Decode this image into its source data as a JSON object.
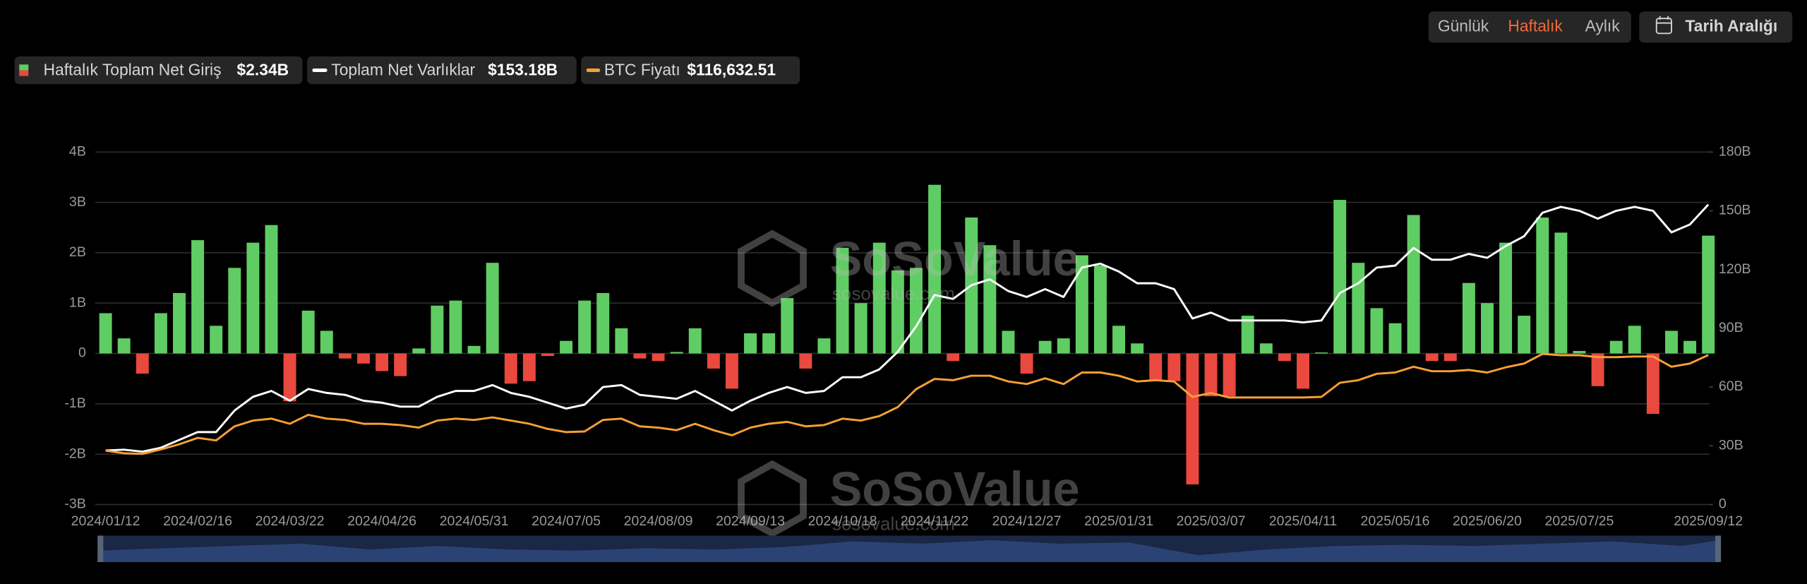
{
  "chart_data": {
    "type": "combo",
    "controls": {
      "periods": [
        "Günlük",
        "Haftalık",
        "Aylık"
      ],
      "active": 1,
      "active_color": "#f26a3d",
      "date_range": "Tarih Aralığı"
    },
    "watermark": {
      "brand": "SoSoValue",
      "url": "sosovalue.com"
    },
    "categories": [
      "2024/01/12",
      null,
      null,
      null,
      null,
      "2024/02/16",
      null,
      null,
      null,
      null,
      "2024/03/22",
      null,
      null,
      null,
      null,
      "2024/04/26",
      null,
      null,
      null,
      null,
      "2024/05/31",
      null,
      null,
      null,
      null,
      "2024/07/05",
      null,
      null,
      null,
      null,
      "2024/08/09",
      null,
      null,
      null,
      null,
      "2024/09/13",
      null,
      null,
      null,
      null,
      "2024/10/18",
      null,
      null,
      null,
      null,
      "2024/11/22",
      null,
      null,
      null,
      null,
      "2024/12/27",
      null,
      null,
      null,
      null,
      "2025/01/31",
      null,
      null,
      null,
      null,
      "2025/03/07",
      null,
      null,
      null,
      null,
      "2025/04/11",
      null,
      null,
      null,
      null,
      "2025/05/16",
      null,
      null,
      null,
      null,
      "2025/06/20",
      null,
      null,
      null,
      null,
      "2025/07/25",
      null,
      null,
      null,
      null,
      null,
      null,
      "2025/09/12"
    ],
    "series": [
      {
        "name": "Haftalık Toplam Net Giriş",
        "type": "bar",
        "axis": "y",
        "color": "#5fcd63",
        "negative_color": "#e9493e",
        "latest_label": "$2.34B",
        "values": [
          0.8,
          0.3,
          -0.4,
          0.8,
          1.2,
          2.25,
          0.55,
          1.7,
          2.2,
          2.55,
          -0.95,
          0.85,
          0.45,
          -0.1,
          -0.2,
          -0.35,
          -0.45,
          0.1,
          0.95,
          1.05,
          0.15,
          1.8,
          -0.6,
          -0.55,
          -0.05,
          0.25,
          1.05,
          1.2,
          0.5,
          -0.1,
          -0.15,
          0.03,
          0.5,
          -0.3,
          -0.7,
          0.4,
          0.4,
          1.1,
          -0.3,
          0.3,
          2.1,
          1.0,
          2.2,
          1.65,
          1.7,
          3.35,
          -0.15,
          2.7,
          2.15,
          0.45,
          -0.4,
          0.25,
          0.3,
          1.95,
          1.75,
          0.55,
          0.2,
          -0.55,
          -0.55,
          -2.6,
          -0.85,
          -0.85,
          0.75,
          0.2,
          -0.15,
          -0.7,
          0.02,
          3.05,
          1.8,
          0.9,
          0.6,
          2.75,
          -0.15,
          -0.15,
          1.4,
          1.0,
          2.2,
          0.75,
          2.7,
          2.4,
          0.05,
          -0.65,
          0.25,
          0.55,
          -1.2,
          0.45,
          0.25,
          2.34
        ]
      },
      {
        "name": "Toplam Net Varlıklar",
        "type": "line",
        "axis": "y2",
        "color": "#ffffff",
        "latest_label": "$153.18B",
        "values": [
          27.6,
          28,
          27,
          29,
          33,
          37,
          37,
          48,
          55,
          58,
          53,
          59,
          57,
          56,
          53,
          52,
          50,
          50,
          55,
          58,
          58,
          61,
          57,
          55,
          52,
          49,
          51,
          60,
          61,
          56,
          55,
          54,
          58,
          53,
          48,
          53,
          57,
          60,
          57,
          58,
          65,
          65,
          69,
          78,
          91,
          107,
          105,
          112,
          115,
          109,
          106,
          110,
          106,
          121,
          123,
          119,
          113,
          113,
          110,
          95,
          98,
          94,
          94,
          94,
          94,
          93,
          94,
          108,
          113,
          121,
          122,
          131,
          125,
          125,
          128,
          126,
          132,
          137,
          149,
          152,
          150,
          146,
          150,
          152,
          150,
          139,
          143,
          153.18
        ]
      },
      {
        "name": "BTC Fiyatı",
        "type": "line",
        "axis": "y3",
        "color": "#f7a035",
        "latest_label": "$116,632.51",
        "values": [
          42000,
          40000,
          39500,
          43000,
          47000,
          52000,
          50000,
          61000,
          65500,
          67000,
          63000,
          70000,
          67000,
          66000,
          63000,
          63000,
          62000,
          60000,
          65500,
          67000,
          66000,
          68000,
          65500,
          63000,
          59000,
          56500,
          57000,
          66000,
          67000,
          61000,
          60000,
          58000,
          63000,
          58000,
          54000,
          60000,
          63000,
          64500,
          61000,
          62000,
          67000,
          65500,
          69000,
          76000,
          90000,
          98000,
          97000,
          100500,
          100500,
          96000,
          94000,
          98500,
          94000,
          103000,
          103000,
          100500,
          96000,
          97000,
          96000,
          84000,
          87000,
          83500,
          83500,
          83500,
          83500,
          83500,
          84000,
          95000,
          97000,
          102000,
          103000,
          107500,
          104000,
          104000,
          105000,
          103000,
          107000,
          110000,
          117500,
          116500,
          116500,
          115000,
          115000,
          115500,
          115500,
          107500,
          110000,
          116632.51
        ]
      }
    ],
    "ylim": [
      -3,
      4
    ],
    "yticks": [
      {
        "value": 4,
        "label": "4B"
      },
      {
        "value": 3,
        "label": "3B"
      },
      {
        "value": 2,
        "label": "2B"
      },
      {
        "value": 1,
        "label": "1B"
      },
      0,
      {
        "value": -1,
        "label": "-1B"
      },
      {
        "value": -2,
        "label": "-2B"
      },
      {
        "value": -3,
        "label": "-3B"
      }
    ],
    "y2lim": [
      0,
      180
    ],
    "y2ticks": [
      {
        "value": 180,
        "label": "180B"
      },
      {
        "value": 150,
        "label": "150B"
      },
      {
        "value": 120,
        "label": "120B"
      },
      {
        "value": 90,
        "label": "90B"
      },
      {
        "value": 60,
        "label": "60B"
      },
      {
        "value": 30,
        "label": "30B"
      },
      0
    ],
    "y3lim": [
      0,
      275000
    ],
    "grid": true
  }
}
